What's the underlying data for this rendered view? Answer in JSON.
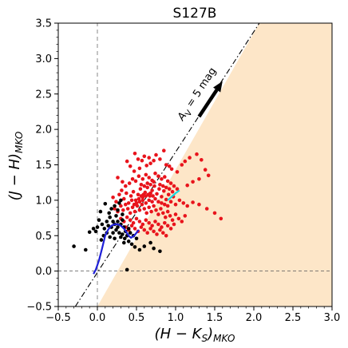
{
  "chart_data": {
    "type": "scatter",
    "title": "S127B",
    "xlabel_main": "(H − K",
    "xlabel_sub_s": "S",
    "xlabel_close": ")",
    "xlabel_sub": "MKO",
    "ylabel_main": "(J − H)",
    "ylabel_sub": "MKO",
    "xlim": [
      -0.5,
      3.0
    ],
    "ylim": [
      -0.5,
      3.5
    ],
    "xticks": [
      -0.5,
      0.0,
      0.5,
      1.0,
      1.5,
      2.0,
      2.5,
      3.0
    ],
    "yticks": [
      -0.5,
      0.0,
      0.5,
      1.0,
      1.5,
      2.0,
      2.5,
      3.0,
      3.5
    ],
    "xtick_labels": [
      "−0.5",
      "0.0",
      "0.5",
      "1.0",
      "1.5",
      "2.0",
      "2.5",
      "3.0"
    ],
    "ytick_labels": [
      "−0.5",
      "0.0",
      "0.5",
      "1.0",
      "1.5",
      "2.0",
      "2.5",
      "3.0",
      "3.5"
    ],
    "grid": false,
    "annotation": {
      "text_a": "A",
      "text_sub": "V",
      "text_rest": " = 5 mag"
    },
    "colors": {
      "excess_region": "#fde6c8",
      "red_points": "#e8141c",
      "black_points": "#000000",
      "dwarf_locus": "#1f20d8",
      "ctts_locus": "#18d8e0",
      "reddening_line": "#000000"
    },
    "reddening_line": {
      "slope": 1.7,
      "intercept": -0.02
    },
    "arrow": {
      "from": [
        1.3,
        2.18
      ],
      "to": [
        1.6,
        2.68
      ]
    },
    "series": [
      {
        "role": "red",
        "points": [
          [
            0.26,
            1.32
          ],
          [
            0.38,
            1.55
          ],
          [
            0.42,
            1.48
          ],
          [
            0.47,
            1.41
          ],
          [
            0.48,
            1.66
          ],
          [
            0.52,
            1.58
          ],
          [
            0.54,
            1.45
          ],
          [
            0.57,
            1.56
          ],
          [
            0.6,
            1.62
          ],
          [
            0.63,
            1.49
          ],
          [
            0.66,
            1.6
          ],
          [
            0.68,
            1.52
          ],
          [
            0.72,
            1.56
          ],
          [
            0.75,
            1.64
          ],
          [
            0.8,
            1.58
          ],
          [
            0.85,
            1.7
          ],
          [
            0.88,
            1.5
          ],
          [
            0.92,
            1.48
          ],
          [
            0.95,
            1.44
          ],
          [
            1.02,
            1.4
          ],
          [
            1.08,
            1.5
          ],
          [
            1.12,
            1.55
          ],
          [
            1.18,
            1.6
          ],
          [
            1.27,
            1.65
          ],
          [
            1.33,
            1.57
          ],
          [
            1.38,
            1.43
          ],
          [
            1.42,
            1.35
          ],
          [
            1.3,
            1.3
          ],
          [
            1.22,
            1.26
          ],
          [
            1.15,
            1.21
          ],
          [
            0.32,
            1.26
          ],
          [
            0.36,
            1.2
          ],
          [
            0.41,
            1.24
          ],
          [
            0.45,
            1.3
          ],
          [
            0.49,
            1.27
          ],
          [
            0.53,
            1.34
          ],
          [
            0.58,
            1.3
          ],
          [
            0.62,
            1.36
          ],
          [
            0.66,
            1.32
          ],
          [
            0.7,
            1.28
          ],
          [
            0.74,
            1.38
          ],
          [
            0.78,
            1.34
          ],
          [
            0.82,
            1.3
          ],
          [
            0.86,
            1.33
          ],
          [
            0.9,
            1.27
          ],
          [
            0.94,
            1.24
          ],
          [
            0.98,
            1.2
          ],
          [
            1.02,
            1.16
          ],
          [
            0.2,
            1.04
          ],
          [
            0.24,
            0.98
          ],
          [
            0.28,
            1.08
          ],
          [
            0.31,
            1.14
          ],
          [
            0.34,
            1.02
          ],
          [
            0.37,
            1.1
          ],
          [
            0.4,
            0.96
          ],
          [
            0.43,
            1.06
          ],
          [
            0.46,
            1.12
          ],
          [
            0.49,
            1.0
          ],
          [
            0.52,
            1.08
          ],
          [
            0.55,
            1.16
          ],
          [
            0.58,
            1.04
          ],
          [
            0.61,
            1.11
          ],
          [
            0.64,
            1.18
          ],
          [
            0.67,
            1.06
          ],
          [
            0.7,
            1.14
          ],
          [
            0.73,
            1.2
          ],
          [
            0.76,
            1.09
          ],
          [
            0.79,
            1.16
          ],
          [
            0.82,
            1.05
          ],
          [
            0.85,
            1.13
          ],
          [
            0.88,
            1.01
          ],
          [
            0.91,
            1.08
          ],
          [
            0.94,
            0.98
          ],
          [
            0.97,
            1.05
          ],
          [
            1.0,
            0.94
          ],
          [
            1.05,
            1.0
          ],
          [
            1.1,
            0.96
          ],
          [
            1.15,
            0.92
          ],
          [
            1.22,
            0.97
          ],
          [
            1.3,
            0.94
          ],
          [
            1.4,
            0.88
          ],
          [
            1.5,
            0.82
          ],
          [
            1.58,
            0.74
          ],
          [
            0.22,
            0.88
          ],
          [
            0.26,
            0.84
          ],
          [
            0.3,
            0.92
          ],
          [
            0.33,
            0.86
          ],
          [
            0.36,
            0.94
          ],
          [
            0.39,
            0.88
          ],
          [
            0.42,
            0.82
          ],
          [
            0.45,
            0.9
          ],
          [
            0.48,
            0.84
          ],
          [
            0.51,
            0.92
          ],
          [
            0.54,
            0.86
          ],
          [
            0.57,
            0.94
          ],
          [
            0.6,
            0.88
          ],
          [
            0.63,
            0.82
          ],
          [
            0.66,
            0.9
          ],
          [
            0.69,
            0.84
          ],
          [
            0.72,
            0.92
          ],
          [
            0.75,
            0.86
          ],
          [
            0.78,
            0.8
          ],
          [
            0.81,
            0.88
          ],
          [
            0.84,
            0.82
          ],
          [
            0.87,
            0.76
          ],
          [
            0.9,
            0.84
          ],
          [
            0.93,
            0.78
          ],
          [
            0.96,
            0.72
          ],
          [
            1.0,
            0.8
          ],
          [
            1.04,
            0.74
          ],
          [
            1.08,
            0.7
          ],
          [
            1.12,
            0.78
          ],
          [
            0.3,
            0.74
          ],
          [
            0.34,
            0.7
          ],
          [
            0.38,
            0.76
          ],
          [
            0.42,
            0.72
          ],
          [
            0.46,
            0.68
          ],
          [
            0.5,
            0.74
          ],
          [
            0.54,
            0.7
          ],
          [
            0.58,
            0.66
          ],
          [
            0.62,
            0.72
          ],
          [
            0.66,
            0.68
          ],
          [
            0.7,
            0.64
          ],
          [
            0.74,
            0.7
          ],
          [
            0.78,
            0.66
          ],
          [
            0.82,
            0.62
          ],
          [
            0.86,
            0.68
          ],
          [
            0.9,
            0.64
          ],
          [
            0.94,
            0.6
          ],
          [
            0.98,
            0.66
          ],
          [
            0.36,
            0.62
          ],
          [
            0.4,
            0.58
          ],
          [
            0.44,
            0.64
          ],
          [
            0.48,
            0.6
          ],
          [
            0.52,
            0.56
          ],
          [
            0.56,
            0.62
          ],
          [
            0.6,
            0.58
          ],
          [
            0.64,
            0.54
          ],
          [
            0.68,
            0.6
          ],
          [
            0.72,
            0.56
          ],
          [
            0.76,
            0.52
          ],
          [
            0.8,
            0.58
          ],
          [
            0.84,
            0.54
          ],
          [
            0.88,
            0.5
          ],
          [
            0.64,
            1.24
          ],
          [
            0.68,
            1.22
          ],
          [
            0.72,
            1.26
          ],
          [
            0.56,
            1.22
          ],
          [
            0.6,
            1.2
          ],
          [
            0.8,
            1.22
          ],
          [
            0.84,
            1.2
          ],
          [
            0.88,
            1.18
          ],
          [
            0.92,
            1.16
          ],
          [
            0.96,
            1.12
          ],
          [
            0.54,
            0.98
          ],
          [
            0.58,
            1.0
          ],
          [
            0.62,
            0.96
          ],
          [
            0.66,
            1.0
          ],
          [
            0.7,
            0.98
          ],
          [
            0.74,
            1.02
          ],
          [
            0.78,
            0.98
          ],
          [
            0.82,
            0.96
          ],
          [
            0.86,
            0.94
          ],
          [
            0.9,
            0.92
          ],
          [
            0.44,
            1.0
          ],
          [
            0.47,
            0.94
          ],
          [
            0.5,
            0.96
          ],
          [
            0.53,
            1.02
          ],
          [
            0.56,
            1.06
          ],
          [
            0.59,
            1.08
          ],
          [
            0.62,
            1.06
          ],
          [
            0.65,
            1.08
          ],
          [
            0.68,
            1.1
          ],
          [
            0.71,
            1.06
          ]
        ]
      },
      {
        "role": "black",
        "points": [
          [
            0.1,
            0.95
          ],
          [
            0.04,
            0.84
          ],
          [
            0.0,
            0.62
          ],
          [
            -0.02,
            0.56
          ],
          [
            -0.05,
            0.6
          ],
          [
            -0.1,
            0.55
          ],
          [
            -0.3,
            0.35
          ],
          [
            -0.15,
            0.3
          ],
          [
            0.02,
            0.72
          ],
          [
            0.06,
            0.66
          ],
          [
            0.09,
            0.6
          ],
          [
            0.12,
            0.7
          ],
          [
            0.14,
            0.64
          ],
          [
            0.16,
            0.76
          ],
          [
            0.18,
            0.62
          ],
          [
            0.2,
            0.7
          ],
          [
            0.22,
            0.66
          ],
          [
            0.24,
            0.58
          ],
          [
            0.26,
            0.62
          ],
          [
            0.28,
            0.54
          ],
          [
            0.3,
            0.48
          ],
          [
            0.32,
            0.52
          ],
          [
            0.35,
            0.46
          ],
          [
            0.38,
            0.5
          ],
          [
            0.4,
            0.42
          ],
          [
            0.44,
            0.38
          ],
          [
            0.48,
            0.34
          ],
          [
            0.54,
            0.3
          ],
          [
            0.6,
            0.35
          ],
          [
            0.68,
            0.4
          ],
          [
            0.72,
            0.32
          ],
          [
            0.8,
            0.28
          ],
          [
            0.34,
            0.4
          ],
          [
            0.2,
            0.54
          ],
          [
            0.15,
            0.82
          ],
          [
            0.18,
            0.88
          ],
          [
            0.22,
            0.92
          ],
          [
            0.26,
            0.86
          ],
          [
            0.28,
            0.96
          ],
          [
            0.3,
            1.0
          ],
          [
            0.32,
            0.8
          ],
          [
            0.24,
            0.78
          ],
          [
            0.26,
            0.7
          ],
          [
            0.3,
            0.66
          ],
          [
            0.32,
            0.72
          ],
          [
            0.34,
            0.62
          ],
          [
            0.12,
            0.54
          ],
          [
            0.08,
            0.5
          ],
          [
            0.05,
            0.44
          ],
          [
            0.16,
            0.48
          ],
          [
            0.22,
            0.46
          ],
          [
            0.36,
            0.56
          ],
          [
            0.4,
            0.6
          ],
          [
            0.42,
            0.54
          ],
          [
            0.46,
            0.5
          ],
          [
            0.5,
            0.46
          ],
          [
            0.38,
            0.02
          ]
        ]
      },
      {
        "role": "dwarf_locus",
        "points": [
          [
            -0.05,
            -0.04
          ],
          [
            -0.02,
            0.02
          ],
          [
            0.02,
            0.15
          ],
          [
            0.06,
            0.32
          ],
          [
            0.1,
            0.5
          ],
          [
            0.14,
            0.59
          ],
          [
            0.18,
            0.64
          ],
          [
            0.22,
            0.66
          ],
          [
            0.26,
            0.66
          ],
          [
            0.3,
            0.64
          ],
          [
            0.34,
            0.6
          ],
          [
            0.37,
            0.55
          ],
          [
            0.4,
            0.5
          ],
          [
            0.43,
            0.47
          ],
          [
            0.47,
            0.5
          ],
          [
            0.5,
            0.54
          ],
          [
            0.53,
            0.58
          ]
        ]
      },
      {
        "role": "ctts_locus",
        "points": [
          [
            0.9,
            1.0
          ],
          [
            0.95,
            1.05
          ],
          [
            1.0,
            1.1
          ],
          [
            1.05,
            1.14
          ]
        ]
      }
    ]
  }
}
